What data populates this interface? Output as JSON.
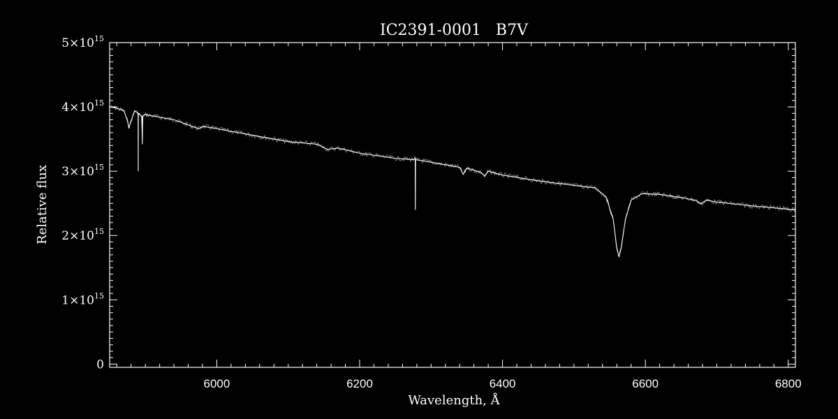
{
  "chart_data": {
    "type": "line",
    "title": "IC2391-0001   B7V",
    "xlabel": "Wavelength, Å",
    "ylabel": "Relative flux",
    "xlim": [
      5850,
      6810
    ],
    "ylim": [
      -50000000000000.0,
      5000000000000000.0
    ],
    "x_ticks": [
      6000,
      6200,
      6400,
      6600,
      6800
    ],
    "x_tick_labels": [
      "6000",
      "6200",
      "6400",
      "6600",
      "6800"
    ],
    "y_ticks": [
      0,
      1000000000000000.0,
      2000000000000000.0,
      3000000000000000.0,
      4000000000000000.0,
      5000000000000000.0
    ],
    "y_tick_labels": [
      {
        "mant": "0",
        "exp": ""
      },
      {
        "mant": "1×10",
        "exp": "15"
      },
      {
        "mant": "2×10",
        "exp": "15"
      },
      {
        "mant": "3×10",
        "exp": "15"
      },
      {
        "mant": "4×10",
        "exp": "15"
      },
      {
        "mant": "5×10",
        "exp": "15"
      }
    ],
    "grid": false,
    "line_color": "#ffffff",
    "background": "#000000",
    "series": [
      {
        "values": [
          [
            5850,
            4000000000000000.0
          ],
          [
            5860,
            3980000000000000.0
          ],
          [
            5870,
            3940000000000000.0
          ],
          [
            5875,
            3780000000000000.0
          ],
          [
            5877,
            3680000000000000.0
          ],
          [
            5880,
            3780000000000000.0
          ],
          [
            5885,
            3940000000000000.0
          ],
          [
            5889.9,
            3900000000000000.0
          ],
          [
            5890,
            3000000000000000.0
          ],
          [
            5890.2,
            3900000000000000.0
          ],
          [
            5895,
            3850000000000000.0
          ],
          [
            5895.8,
            3420000000000000.0
          ],
          [
            5896.2,
            3860000000000000.0
          ],
          [
            5900,
            3880000000000000.0
          ],
          [
            5920,
            3840000000000000.0
          ],
          [
            5940,
            3800000000000000.0
          ],
          [
            5960,
            3720000000000000.0
          ],
          [
            5975,
            3660000000000000.0
          ],
          [
            5980,
            3700000000000000.0
          ],
          [
            6000,
            3660000000000000.0
          ],
          [
            6050,
            3560000000000000.0
          ],
          [
            6100,
            3460000000000000.0
          ],
          [
            6140,
            3420000000000000.0
          ],
          [
            6155,
            3340000000000000.0
          ],
          [
            6170,
            3360000000000000.0
          ],
          [
            6200,
            3280000000000000.0
          ],
          [
            6250,
            3200000000000000.0
          ],
          [
            6275,
            3180000000000000.0
          ],
          [
            6277.8,
            3200000000000000.0
          ],
          [
            6278,
            2400000000000000.0
          ],
          [
            6278.3,
            3180000000000000.0
          ],
          [
            6300,
            3140000000000000.0
          ],
          [
            6340,
            3060000000000000.0
          ],
          [
            6345,
            2950000000000000.0
          ],
          [
            6350,
            3050000000000000.0
          ],
          [
            6370,
            2980000000000000.0
          ],
          [
            6375,
            2920000000000000.0
          ],
          [
            6380,
            3000000000000000.0
          ],
          [
            6400,
            2940000000000000.0
          ],
          [
            6450,
            2850000000000000.0
          ],
          [
            6500,
            2780000000000000.0
          ],
          [
            6530,
            2740000000000000.0
          ],
          [
            6545,
            2600000000000000.0
          ],
          [
            6555,
            2250000000000000.0
          ],
          [
            6560,
            1800000000000000.0
          ],
          [
            6563,
            1670000000000000.0
          ],
          [
            6566,
            1800000000000000.0
          ],
          [
            6572,
            2250000000000000.0
          ],
          [
            6580,
            2550000000000000.0
          ],
          [
            6595,
            2650000000000000.0
          ],
          [
            6620,
            2640000000000000.0
          ],
          [
            6650,
            2590000000000000.0
          ],
          [
            6670,
            2550000000000000.0
          ],
          [
            6678,
            2490000000000000.0
          ],
          [
            6685,
            2550000000000000.0
          ],
          [
            6700,
            2520000000000000.0
          ],
          [
            6750,
            2460000000000000.0
          ],
          [
            6810,
            2400000000000000.0
          ]
        ]
      }
    ]
  }
}
